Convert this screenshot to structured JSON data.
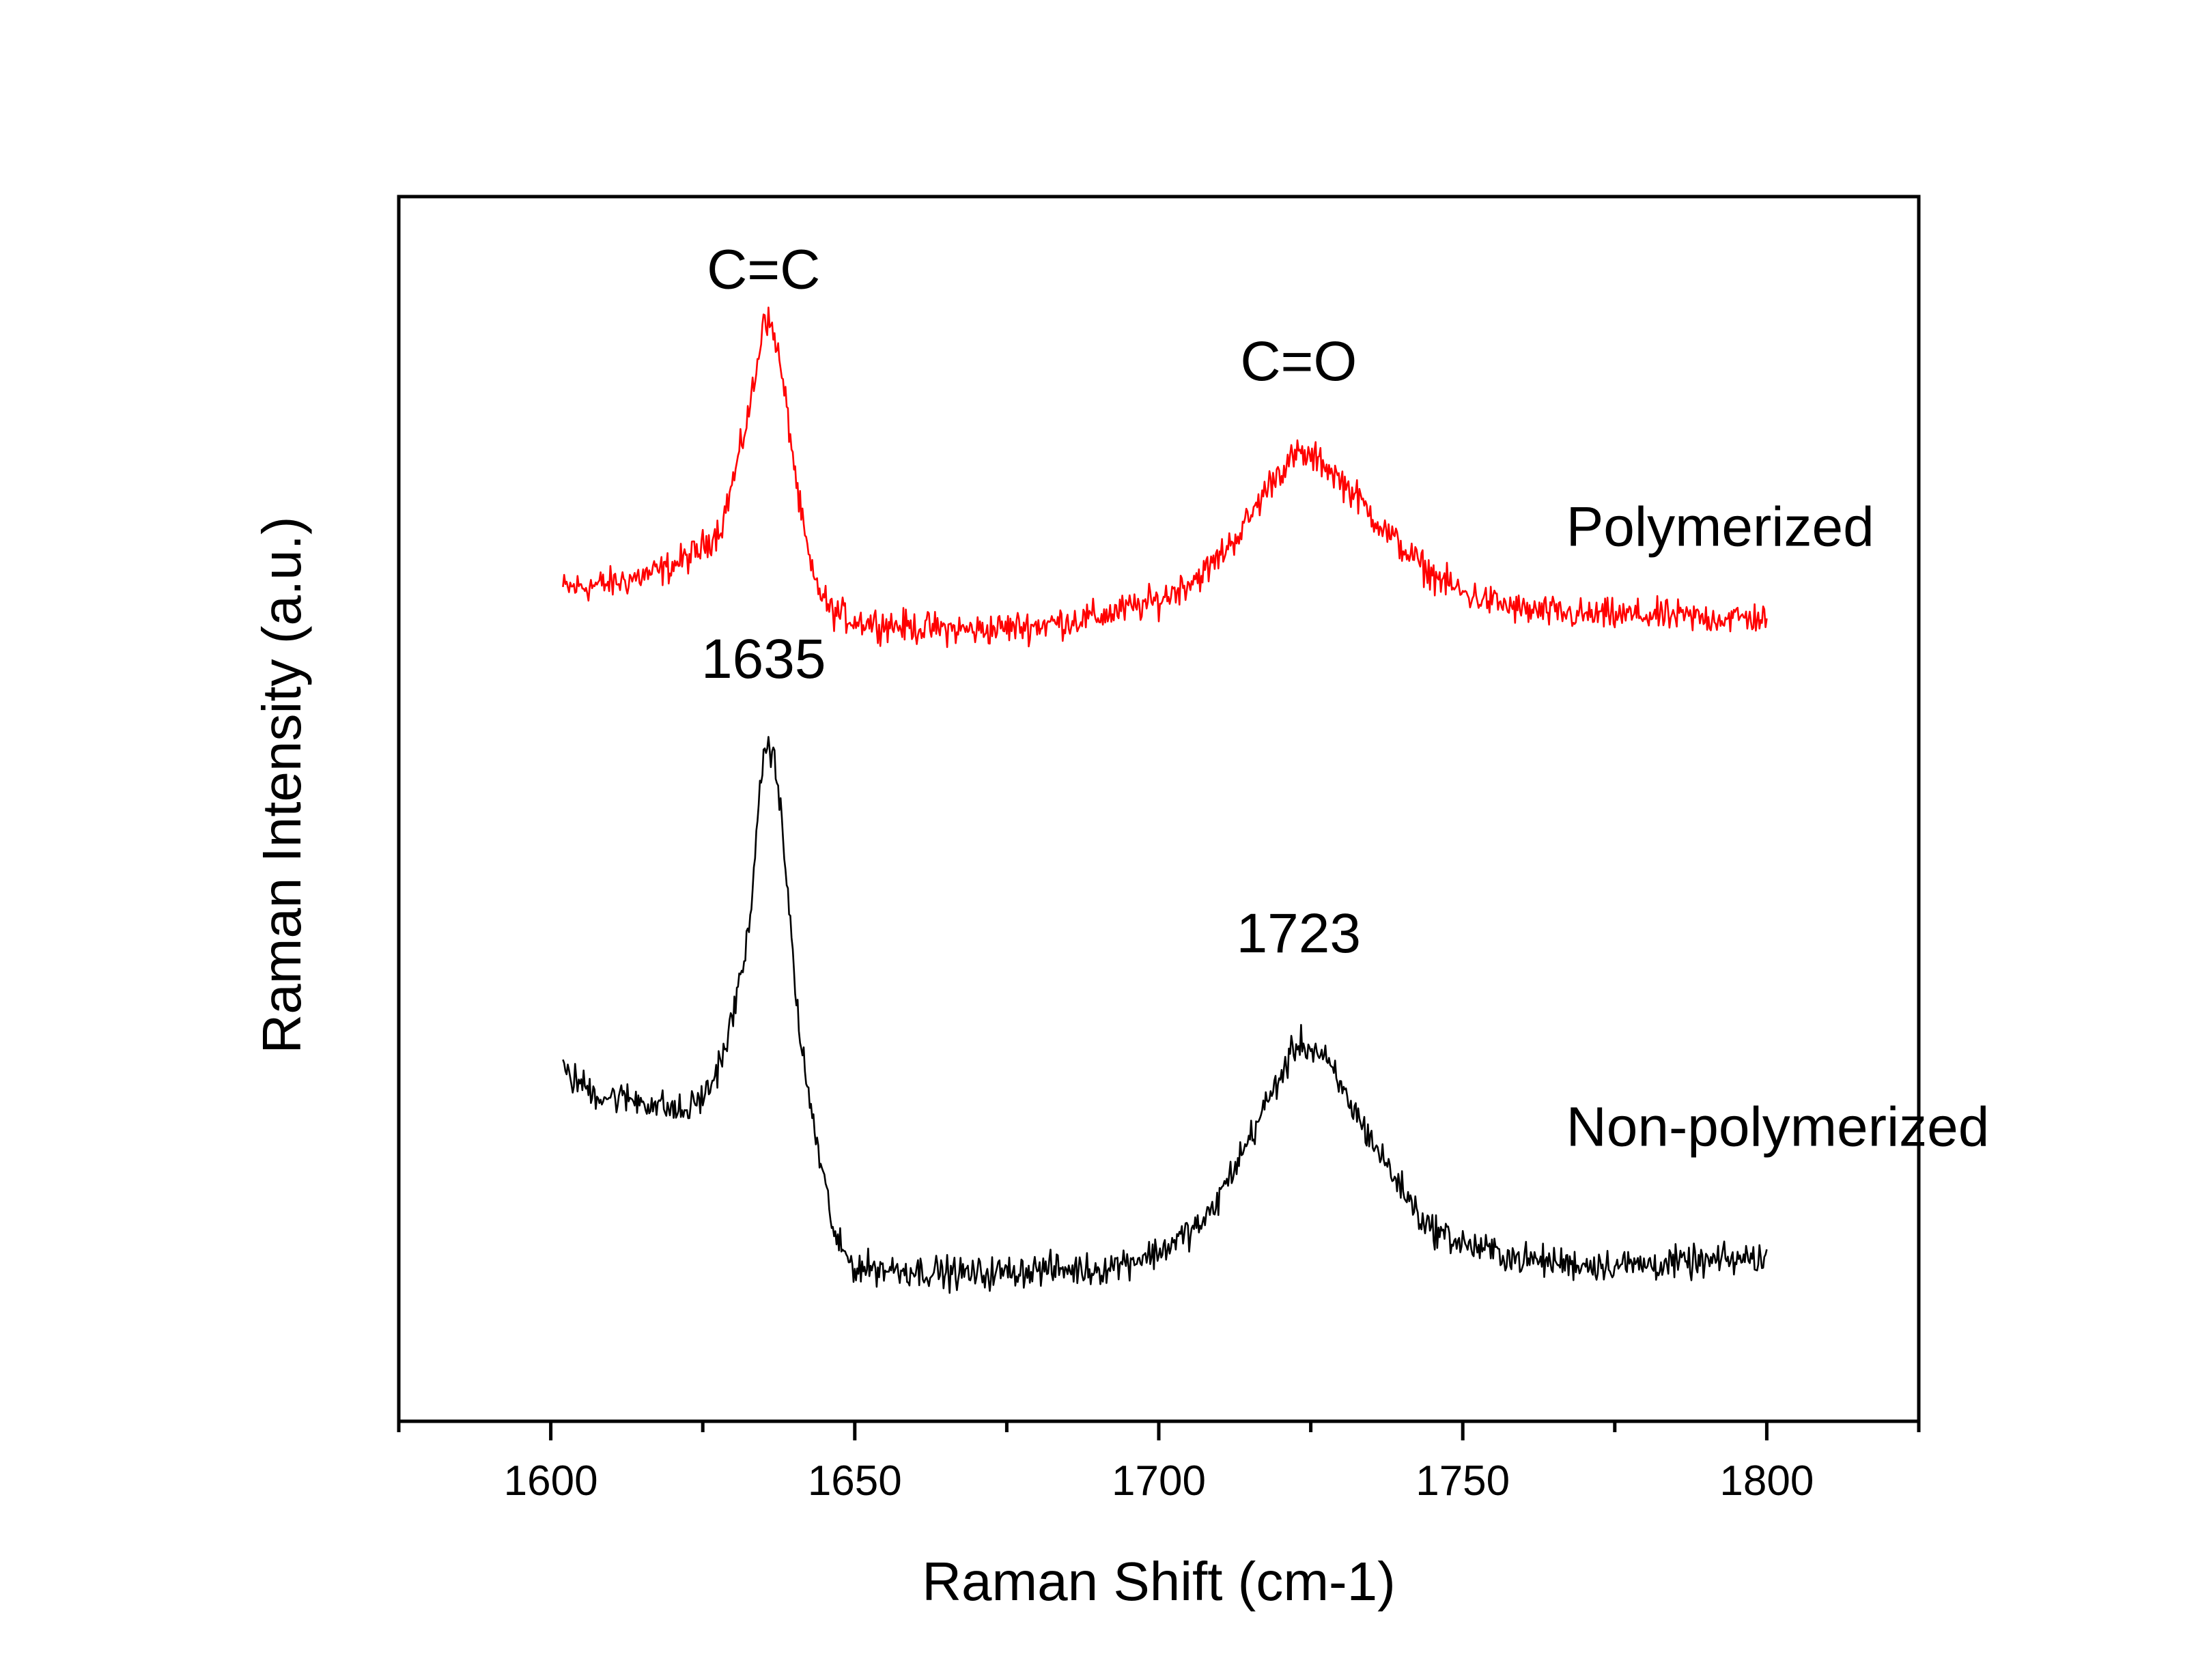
{
  "chart_data": {
    "type": "line",
    "title": "",
    "xlabel": "Raman Shift (cm-1)",
    "ylabel": "Raman Intensity (a.u.)",
    "xlim": [
      1575,
      1825
    ],
    "ylim": [
      0,
      100
    ],
    "x_ticks": [
      1600,
      1650,
      1700,
      1750,
      1800
    ],
    "y_ticks_shown": false,
    "grid": false,
    "legend": "none",
    "series": [
      {
        "name": "Polymerized",
        "color": "#ff0000",
        "points": [
          [
            1602,
            68.0
          ],
          [
            1610,
            68.4
          ],
          [
            1618,
            69.4
          ],
          [
            1624,
            70.9
          ],
          [
            1628,
            73.0
          ],
          [
            1631,
            78.8
          ],
          [
            1634,
            86.0
          ],
          [
            1635,
            90.6
          ],
          [
            1637,
            88.4
          ],
          [
            1639,
            82.0
          ],
          [
            1641,
            74.4
          ],
          [
            1643,
            69.0
          ],
          [
            1646,
            66.2
          ],
          [
            1650,
            65.4
          ],
          [
            1660,
            64.8
          ],
          [
            1670,
            64.6
          ],
          [
            1680,
            65.0
          ],
          [
            1690,
            65.7
          ],
          [
            1700,
            67.0
          ],
          [
            1708,
            69.5
          ],
          [
            1714,
            73.0
          ],
          [
            1719,
            77.2
          ],
          [
            1723,
            79.0
          ],
          [
            1727,
            78.3
          ],
          [
            1732,
            75.8
          ],
          [
            1738,
            72.3
          ],
          [
            1744,
            69.5
          ],
          [
            1750,
            67.6
          ],
          [
            1760,
            66.2
          ],
          [
            1770,
            65.8
          ],
          [
            1780,
            65.8
          ],
          [
            1790,
            65.6
          ],
          [
            1800,
            65.6
          ]
        ]
      },
      {
        "name": "Non-polymerized",
        "color": "#000000",
        "points": [
          [
            1602,
            28.5
          ],
          [
            1608,
            26.6
          ],
          [
            1615,
            26.2
          ],
          [
            1622,
            25.2
          ],
          [
            1626,
            27.0
          ],
          [
            1629,
            31.0
          ],
          [
            1632,
            38.0
          ],
          [
            1634,
            48.0
          ],
          [
            1635,
            55.2
          ],
          [
            1637,
            54.0
          ],
          [
            1639,
            43.0
          ],
          [
            1641,
            31.0
          ],
          [
            1644,
            22.0
          ],
          [
            1647,
            14.5
          ],
          [
            1650,
            12.6
          ],
          [
            1660,
            12.3
          ],
          [
            1670,
            12.0
          ],
          [
            1680,
            12.4
          ],
          [
            1690,
            12.4
          ],
          [
            1700,
            13.8
          ],
          [
            1708,
            16.5
          ],
          [
            1714,
            22.2
          ],
          [
            1719,
            27.2
          ],
          [
            1723,
            31.0
          ],
          [
            1727,
            29.8
          ],
          [
            1732,
            25.5
          ],
          [
            1738,
            20.5
          ],
          [
            1744,
            16.0
          ],
          [
            1750,
            14.5
          ],
          [
            1760,
            13.2
          ],
          [
            1770,
            12.8
          ],
          [
            1780,
            12.8
          ],
          [
            1790,
            13.0
          ],
          [
            1800,
            13.4
          ]
        ]
      }
    ],
    "series_labels": [
      {
        "text": "Polymerized",
        "x": 1767,
        "y": 71.5,
        "color": "#ff0000"
      },
      {
        "text": "Non-polymerized",
        "x": 1767,
        "y": 22.5,
        "color": "#000000"
      }
    ],
    "annotations": [
      {
        "text": "C=C",
        "x": 1635,
        "y": 92.5
      },
      {
        "text": "C=O",
        "x": 1723,
        "y": 85.0
      },
      {
        "text": "1635",
        "x": 1635,
        "y": 60.7
      },
      {
        "text": "1723",
        "x": 1723,
        "y": 38.3
      }
    ]
  }
}
